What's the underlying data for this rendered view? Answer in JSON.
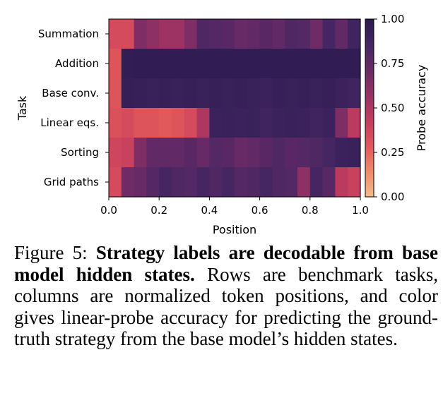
{
  "caption": {
    "label": "Figure 5:",
    "title": "Strategy labels are decodable from base model hidden states.",
    "body": "Rows are benchmark tasks, columns are normalized token positions, and color gives linear-probe accuracy for predicting the ground-truth strategy from the base model’s hidden states."
  },
  "chart_data": {
    "type": "heatmap",
    "title": "",
    "xlabel": "Position",
    "ylabel": "Task",
    "colorbar_label": "Probe accuracy",
    "xlim": [
      0.0,
      1.0
    ],
    "xticks": [
      "0.0",
      "0.2",
      "0.4",
      "0.6",
      "0.8",
      "1.0"
    ],
    "clim": [
      0.0,
      1.0
    ],
    "colorbar_ticks": [
      "0.00",
      "0.25",
      "0.50",
      "0.75",
      "1.00"
    ],
    "colormap_stops": [
      "#f4b987",
      "#ee8a69",
      "#e1575b",
      "#c23d5e",
      "#963164",
      "#6a2a66",
      "#442662",
      "#2a1a4d"
    ],
    "rows": [
      "Summation",
      "Addition",
      "Base conv.",
      "Linear eqs.",
      "Sorting",
      "Grid paths"
    ],
    "x": [
      0.0,
      0.05,
      0.1,
      0.15,
      0.2,
      0.25,
      0.3,
      0.35,
      0.4,
      0.45,
      0.5,
      0.55,
      0.6,
      0.65,
      0.7,
      0.75,
      0.8,
      0.85,
      0.9,
      0.95
    ],
    "values": [
      [
        0.35,
        0.35,
        0.65,
        0.6,
        0.55,
        0.55,
        0.65,
        0.82,
        0.8,
        0.78,
        0.72,
        0.75,
        0.78,
        0.75,
        0.82,
        0.8,
        0.7,
        0.85,
        0.75,
        0.88
      ],
      [
        0.3,
        0.95,
        0.96,
        0.96,
        0.96,
        0.96,
        0.96,
        0.96,
        0.96,
        0.96,
        0.96,
        0.96,
        0.96,
        0.96,
        0.96,
        0.96,
        0.96,
        0.96,
        0.96,
        0.96
      ],
      [
        0.3,
        0.94,
        0.93,
        0.92,
        0.93,
        0.92,
        0.93,
        0.92,
        0.93,
        0.92,
        0.93,
        0.92,
        0.9,
        0.93,
        0.92,
        0.93,
        0.92,
        0.93,
        0.9,
        0.88
      ],
      [
        0.32,
        0.35,
        0.3,
        0.3,
        0.28,
        0.3,
        0.35,
        0.5,
        0.9,
        0.92,
        0.9,
        0.92,
        0.88,
        0.9,
        0.92,
        0.9,
        0.88,
        0.9,
        0.65,
        0.45
      ],
      [
        0.38,
        0.4,
        0.65,
        0.75,
        0.75,
        0.75,
        0.78,
        0.72,
        0.8,
        0.78,
        0.72,
        0.75,
        0.78,
        0.82,
        0.78,
        0.8,
        0.82,
        0.85,
        0.9,
        0.92
      ],
      [
        0.35,
        0.7,
        0.72,
        0.8,
        0.85,
        0.82,
        0.8,
        0.85,
        0.82,
        0.85,
        0.8,
        0.82,
        0.85,
        0.82,
        0.8,
        0.6,
        0.85,
        0.78,
        0.45,
        0.4
      ]
    ]
  }
}
